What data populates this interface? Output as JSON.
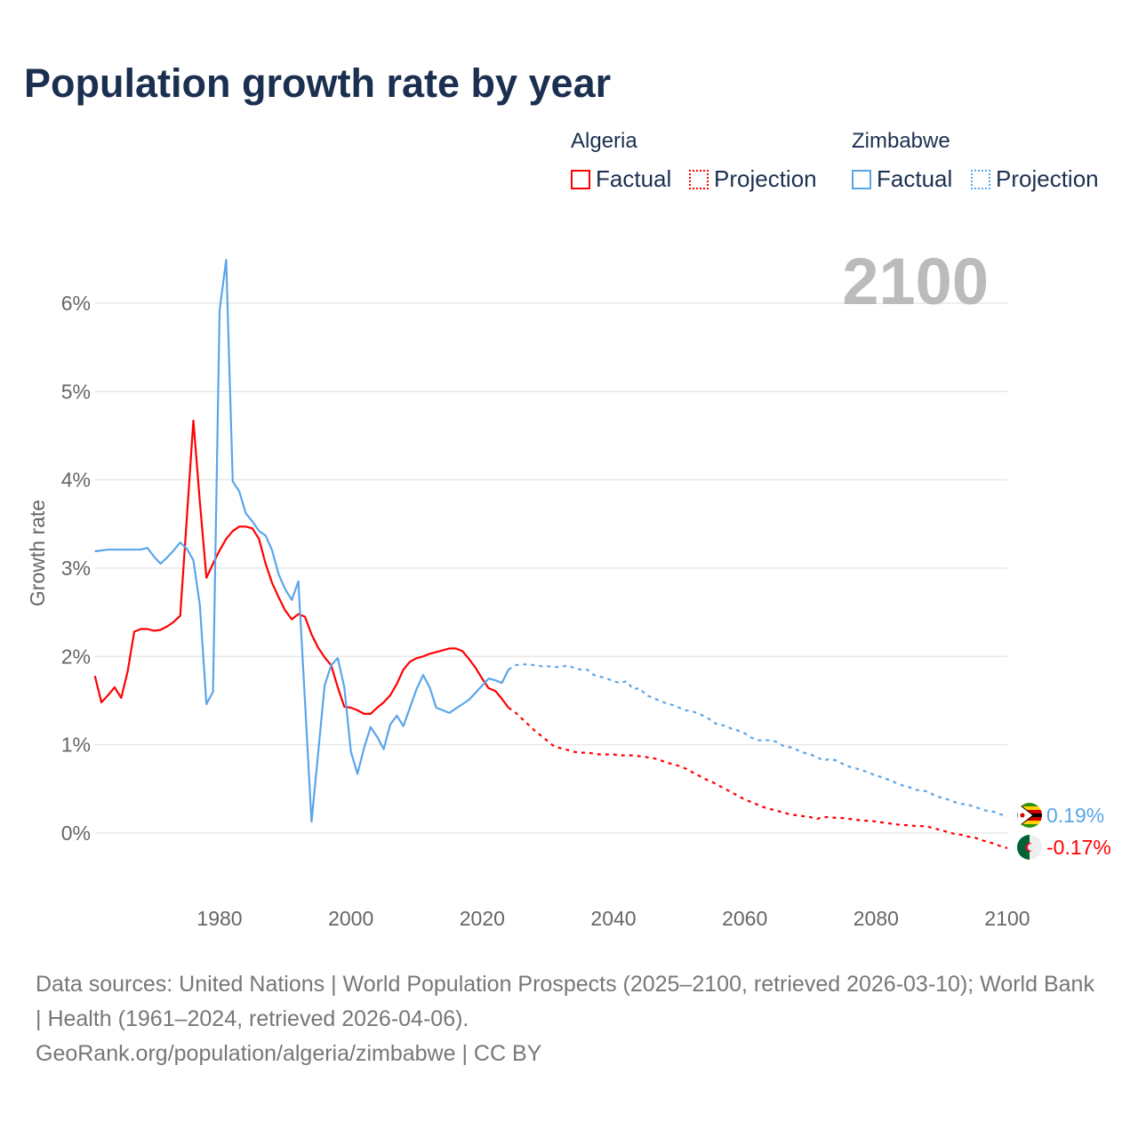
{
  "title": "Population growth rate by year",
  "legend": {
    "groups": [
      {
        "name": "Algeria",
        "color": "#ff0000",
        "factual": "Factual",
        "projection": "Projection"
      },
      {
        "name": "Zimbabwe",
        "color": "#5aa5ea",
        "factual": "Factual",
        "projection": "Projection"
      }
    ]
  },
  "year_label": "2100",
  "footer": {
    "sources": "Data sources: United Nations | World Population Prospects (2025–2100, retrieved 2026-03-10); World Bank | Health (1961–2024, retrieved 2026-04-06).",
    "credit": "GeoRank.org/population/algeria/zimbabwe | CC BY"
  },
  "chart_data": {
    "type": "line",
    "title": "Population growth rate by year",
    "xlabel": "",
    "ylabel": "Growth rate",
    "xlim": [
      1961,
      2100
    ],
    "ylim": [
      -0.7,
      6.6
    ],
    "xticks": [
      "1980",
      "2000",
      "2020",
      "2040",
      "2060",
      "2080",
      "2100"
    ],
    "yticks": [
      "0%",
      "1%",
      "2%",
      "3%",
      "4%",
      "5%",
      "6%"
    ],
    "grid": true,
    "legend_position": "top-right",
    "series": [
      {
        "name": "Algeria Factual",
        "color": "#ff0000",
        "dashed": false,
        "start_year": 1961,
        "values": [
          1.78,
          1.48,
          1.56,
          1.65,
          1.53,
          1.83,
          2.28,
          2.31,
          2.31,
          2.29,
          2.3,
          2.34,
          2.39,
          2.46,
          3.56,
          4.67,
          3.75,
          2.89,
          3.05,
          3.2,
          3.33,
          3.42,
          3.47,
          3.47,
          3.45,
          3.33,
          3.05,
          2.83,
          2.67,
          2.52,
          2.42,
          2.48,
          2.45,
          2.25,
          2.1,
          1.99,
          1.9,
          1.65,
          1.43,
          1.42,
          1.39,
          1.35,
          1.35,
          1.42,
          1.48,
          1.56,
          1.69,
          1.85,
          1.94,
          1.98,
          2.0,
          2.03,
          2.05,
          2.07,
          2.09,
          2.09,
          2.06,
          1.97,
          1.87,
          1.75,
          1.64,
          1.61,
          1.52,
          1.42
        ]
      },
      {
        "name": "Algeria Projection",
        "color": "#ff0000",
        "dashed": true,
        "start_year": 2024,
        "values": [
          1.42,
          1.37,
          1.3,
          1.23,
          1.16,
          1.1,
          1.04,
          0.98,
          0.96,
          0.94,
          0.92,
          0.91,
          0.91,
          0.9,
          0.89,
          0.89,
          0.89,
          0.88,
          0.88,
          0.88,
          0.87,
          0.86,
          0.85,
          0.83,
          0.8,
          0.78,
          0.76,
          0.73,
          0.69,
          0.65,
          0.61,
          0.58,
          0.54,
          0.5,
          0.46,
          0.42,
          0.38,
          0.35,
          0.32,
          0.29,
          0.27,
          0.25,
          0.23,
          0.21,
          0.2,
          0.19,
          0.18,
          0.16,
          0.18,
          0.18,
          0.17,
          0.17,
          0.16,
          0.15,
          0.14,
          0.14,
          0.13,
          0.12,
          0.11,
          0.1,
          0.09,
          0.09,
          0.08,
          0.08,
          0.07,
          0.05,
          0.03,
          0.01,
          -0.01,
          -0.02,
          -0.04,
          -0.05,
          -0.08,
          -0.1,
          -0.12,
          -0.15,
          -0.17
        ]
      },
      {
        "name": "Zimbabwe Factual",
        "color": "#5aa5ea",
        "dashed": false,
        "start_year": 1961,
        "values": [
          3.19,
          3.2,
          3.21,
          3.21,
          3.21,
          3.21,
          3.21,
          3.21,
          3.23,
          3.13,
          3.05,
          3.12,
          3.2,
          3.29,
          3.22,
          3.09,
          2.58,
          1.46,
          1.6,
          5.92,
          6.49,
          3.98,
          3.87,
          3.62,
          3.53,
          3.42,
          3.37,
          3.2,
          2.93,
          2.76,
          2.64,
          2.85,
          1.5,
          0.13,
          0.9,
          1.67,
          1.9,
          1.98,
          1.65,
          0.92,
          0.67,
          0.96,
          1.2,
          1.09,
          0.95,
          1.23,
          1.33,
          1.21,
          1.42,
          1.63,
          1.79,
          1.65,
          1.42,
          1.39,
          1.36,
          1.41,
          1.46,
          1.51,
          1.59,
          1.67,
          1.75,
          1.73,
          1.7,
          1.85
        ]
      },
      {
        "name": "Zimbabwe Projection",
        "color": "#5aa5ea",
        "dashed": true,
        "start_year": 2024,
        "values": [
          1.85,
          1.9,
          1.91,
          1.91,
          1.9,
          1.89,
          1.89,
          1.88,
          1.88,
          1.9,
          1.87,
          1.85,
          1.85,
          1.79,
          1.77,
          1.75,
          1.72,
          1.7,
          1.72,
          1.63,
          1.64,
          1.56,
          1.53,
          1.5,
          1.47,
          1.45,
          1.42,
          1.39,
          1.38,
          1.35,
          1.32,
          1.27,
          1.22,
          1.22,
          1.18,
          1.16,
          1.13,
          1.08,
          1.05,
          1.05,
          1.05,
          1.03,
          0.98,
          0.97,
          0.94,
          0.91,
          0.89,
          0.86,
          0.82,
          0.84,
          0.82,
          0.78,
          0.75,
          0.73,
          0.71,
          0.68,
          0.65,
          0.63,
          0.6,
          0.57,
          0.54,
          0.52,
          0.49,
          0.48,
          0.47,
          0.42,
          0.4,
          0.38,
          0.35,
          0.33,
          0.32,
          0.3,
          0.27,
          0.25,
          0.24,
          0.21,
          0.19
        ]
      }
    ],
    "end_labels": [
      {
        "series": "Zimbabwe",
        "text": "0.19%",
        "value": 0.19,
        "color": "#5aa5ea"
      },
      {
        "series": "Algeria",
        "text": "-0.17%",
        "value": -0.17,
        "color": "#ff0000"
      }
    ]
  }
}
